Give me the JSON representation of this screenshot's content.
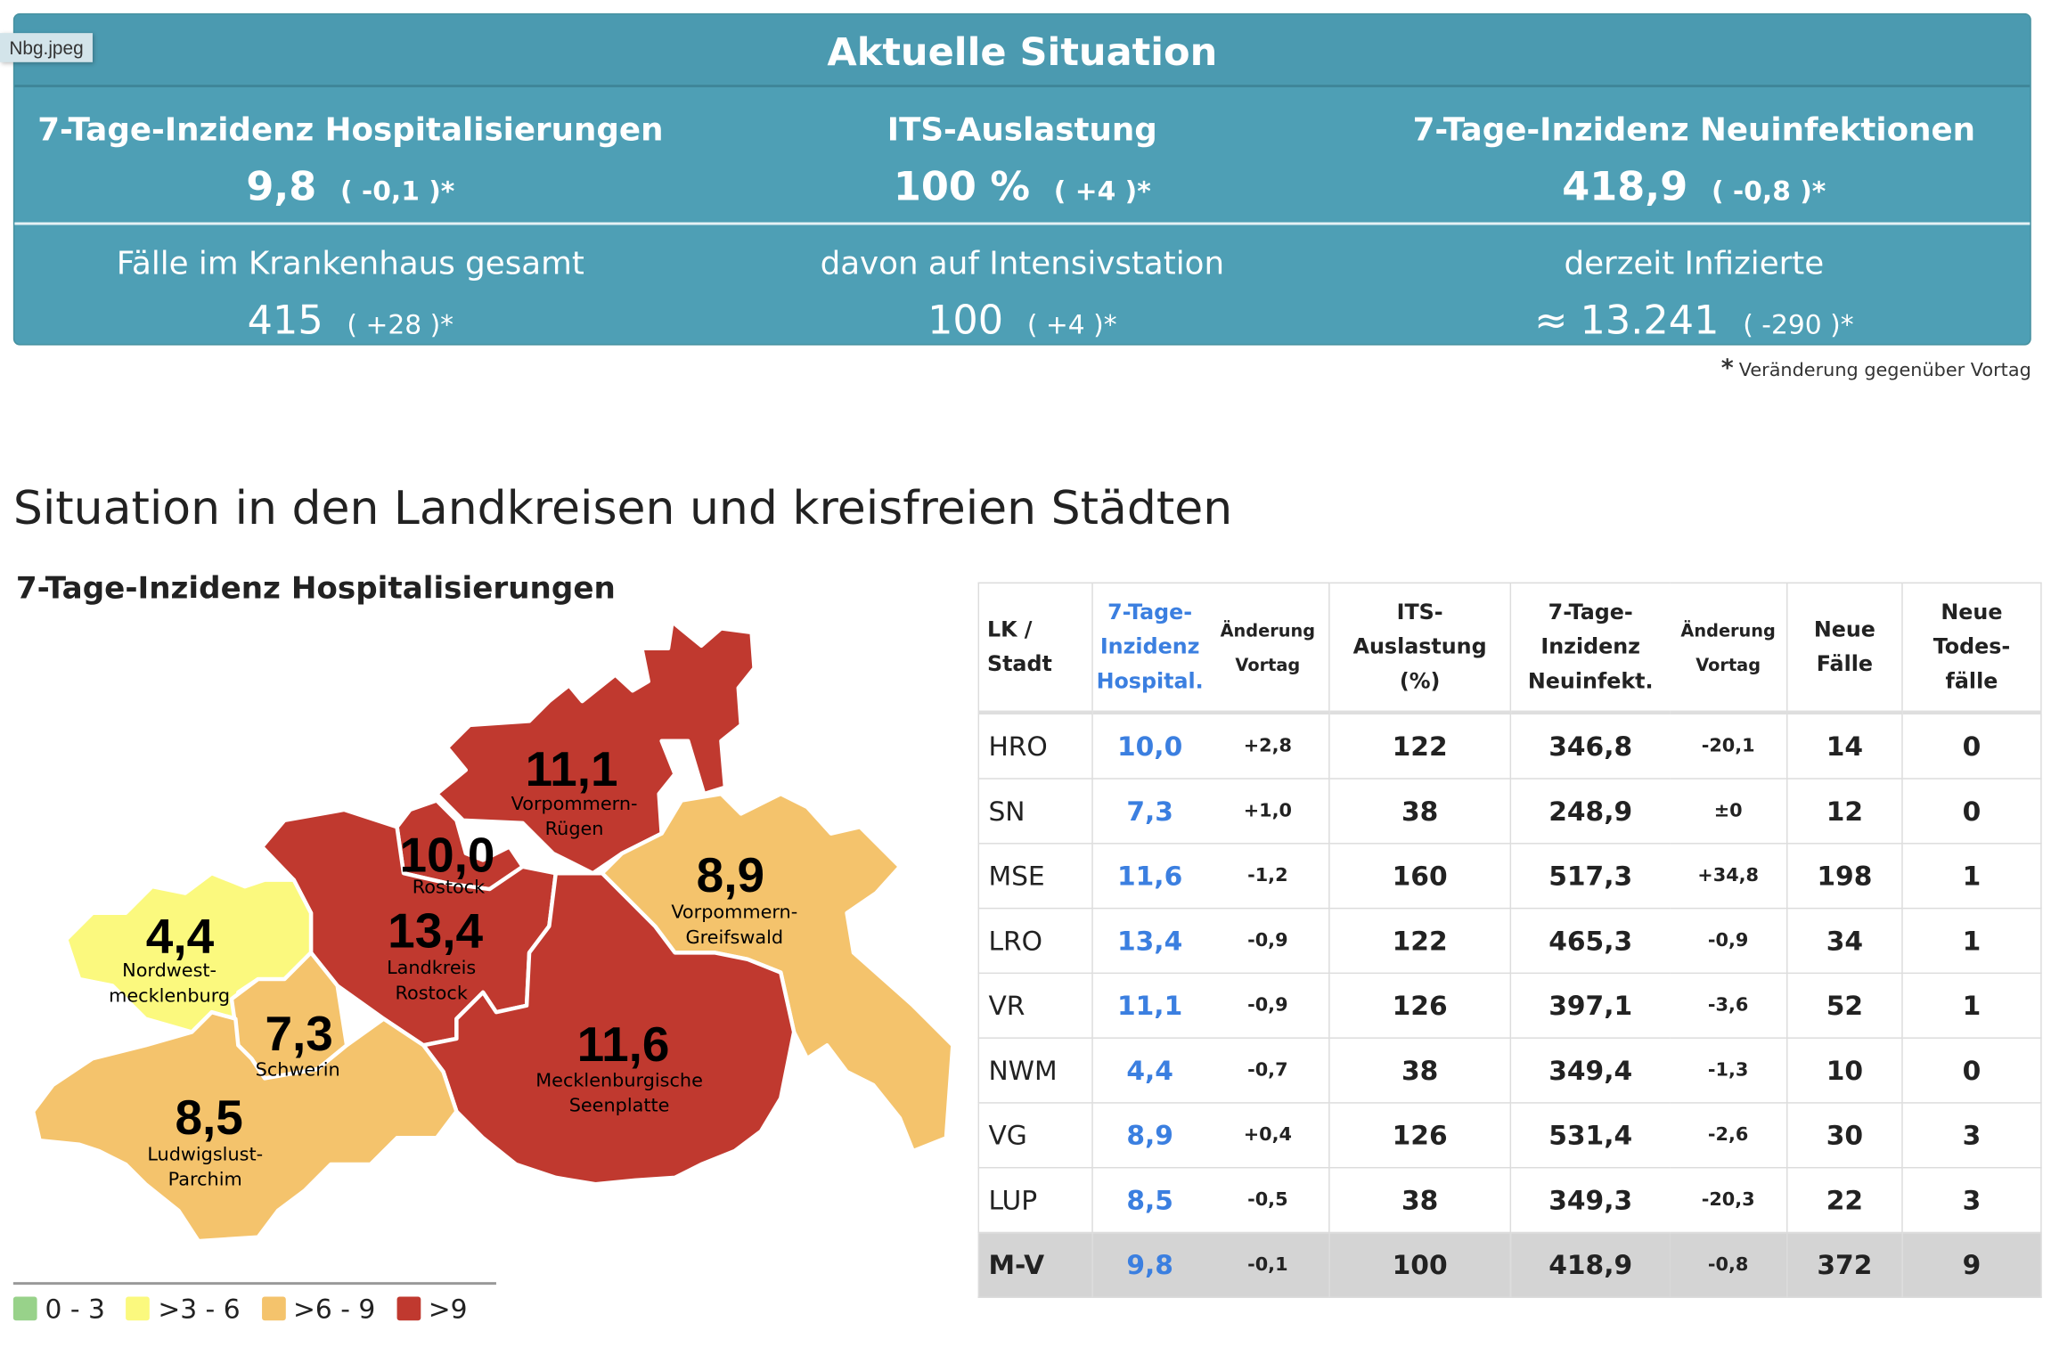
{
  "tooltip": "Nbg.jpeg",
  "summary": {
    "title": "Aktuelle Situation",
    "row1": [
      {
        "label": "7-Tage-Inzidenz Hospitalisierungen",
        "value": "9,8",
        "delta": "( -0,1 )*"
      },
      {
        "label": "ITS-Auslastung",
        "value": "100 %",
        "delta": "( +4 )*"
      },
      {
        "label": "7-Tage-Inzidenz Neuinfektionen",
        "value": "418,9",
        "delta": "( -0,8 )*"
      }
    ],
    "row2": [
      {
        "label": "Fälle im Krankenhaus gesamt",
        "value": "415",
        "delta": "( +28 )*"
      },
      {
        "label": "davon auf Intensivstation",
        "value": "100",
        "delta": "( +4 )*"
      },
      {
        "label": "derzeit Infizierte",
        "value": "≈ 13.241",
        "delta": "( -290 )*"
      }
    ],
    "footnote_star": "*",
    "footnote": "Veränderung gegenüber Vortag"
  },
  "section_title": "Situation in den Landkreisen und kreisfreien Städten",
  "map": {
    "title": "7-Tage-Inzidenz Hospitalisierungen",
    "regions": [
      {
        "code": "VR",
        "name1": "Vorpommern-",
        "name2": "Rügen",
        "value": "11,1",
        "color": "#c0392f"
      },
      {
        "code": "HRO",
        "name1": "Rostock",
        "name2": "",
        "value": "10,0",
        "color": "#c0392f"
      },
      {
        "code": "LRO",
        "name1": "Landkreis",
        "name2": "Rostock",
        "value": "13,4",
        "color": "#c0392f"
      },
      {
        "code": "VG",
        "name1": "Vorpommern-",
        "name2": "Greifswald",
        "value": "8,9",
        "color": "#f4c36c"
      },
      {
        "code": "NWM",
        "name1": "Nordwest-",
        "name2": "mecklenburg",
        "value": "4,4",
        "color": "#fbf97e"
      },
      {
        "code": "SN",
        "name1": "Schwerin",
        "name2": "",
        "value": "7,3",
        "color": "#f4c36c"
      },
      {
        "code": "MSE",
        "name1": "Mecklenburgische",
        "name2": "Seenplatte",
        "value": "11,6",
        "color": "#c0392f"
      },
      {
        "code": "LUP",
        "name1": "Ludwigslust-",
        "name2": "Parchim",
        "value": "8,5",
        "color": "#f4c36c"
      }
    ],
    "legend": [
      {
        "label": "0 - 3",
        "color": "#98d28a"
      },
      {
        "label": ">3 - 6",
        "color": "#fbf97e"
      },
      {
        "label": ">6 - 9",
        "color": "#f4c36c"
      },
      {
        "label": ">9",
        "color": "#c0392f"
      }
    ]
  },
  "table": {
    "headers": {
      "lk": [
        "LK /",
        "Stadt"
      ],
      "hosp": [
        "7-Tage-",
        "Inzidenz",
        "Hospital."
      ],
      "hosp_chg": [
        "Änderung",
        "Vortag"
      ],
      "its": [
        "ITS-",
        "Auslastung",
        "(%)"
      ],
      "neu": [
        "7-Tage-",
        "Inzidenz",
        "Neuinfekt."
      ],
      "neu_chg": [
        "Änderung",
        "Vortag"
      ],
      "faelle": [
        "Neue",
        "Fälle"
      ],
      "tote": [
        "Neue",
        "Todes-",
        "fälle"
      ]
    },
    "rows": [
      {
        "lk": "HRO",
        "hosp": "10,0",
        "hosp_chg": "+2,8",
        "its": "122",
        "neu": "346,8",
        "neu_chg": "-20,1",
        "faelle": "14",
        "tote": "0"
      },
      {
        "lk": "SN",
        "hosp": "7,3",
        "hosp_chg": "+1,0",
        "its": "38",
        "neu": "248,9",
        "neu_chg": "±0",
        "faelle": "12",
        "tote": "0"
      },
      {
        "lk": "MSE",
        "hosp": "11,6",
        "hosp_chg": "-1,2",
        "its": "160",
        "neu": "517,3",
        "neu_chg": "+34,8",
        "faelle": "198",
        "tote": "1"
      },
      {
        "lk": "LRO",
        "hosp": "13,4",
        "hosp_chg": "-0,9",
        "its": "122",
        "neu": "465,3",
        "neu_chg": "-0,9",
        "faelle": "34",
        "tote": "1"
      },
      {
        "lk": "VR",
        "hosp": "11,1",
        "hosp_chg": "-0,9",
        "its": "126",
        "neu": "397,1",
        "neu_chg": "-3,6",
        "faelle": "52",
        "tote": "1"
      },
      {
        "lk": "NWM",
        "hosp": "4,4",
        "hosp_chg": "-0,7",
        "its": "38",
        "neu": "349,4",
        "neu_chg": "-1,3",
        "faelle": "10",
        "tote": "0"
      },
      {
        "lk": "VG",
        "hosp": "8,9",
        "hosp_chg": "+0,4",
        "its": "126",
        "neu": "531,4",
        "neu_chg": "-2,6",
        "faelle": "30",
        "tote": "3"
      },
      {
        "lk": "LUP",
        "hosp": "8,5",
        "hosp_chg": "-0,5",
        "its": "38",
        "neu": "349,3",
        "neu_chg": "-20,3",
        "faelle": "22",
        "tote": "3"
      }
    ],
    "total": {
      "lk": "M-V",
      "hosp": "9,8",
      "hosp_chg": "-0,1",
      "its": "100",
      "neu": "418,9",
      "neu_chg": "-0,8",
      "faelle": "372",
      "tote": "9"
    }
  }
}
